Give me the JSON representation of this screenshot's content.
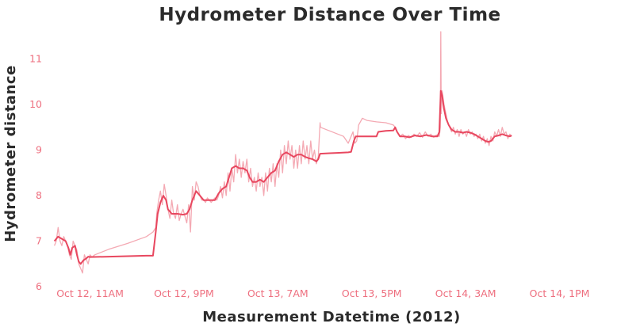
{
  "chart_data": {
    "type": "line",
    "title": "Hydrometer Distance Over Time",
    "xlabel": "Measurement Datetime (2012)",
    "ylabel": "Hydrometer distance",
    "x_tick_labels": [
      "Oct 12, 11AM",
      "Oct 12, 9PM",
      "Oct 13, 7AM",
      "Oct 13, 5PM",
      "Oct 14, 3AM",
      "Oct 14, 1PM"
    ],
    "x_tick_hours": [
      0,
      10,
      20,
      30,
      40,
      50
    ],
    "xlim_hours": [
      -4.1,
      54.6
    ],
    "y_ticks": [
      6,
      7,
      8,
      9,
      10,
      11
    ],
    "ylim": [
      6.0,
      11.6
    ],
    "grid": false,
    "colors": {
      "raw": "#f4a9b3",
      "smoothed": "#e8475f",
      "tick_text": "#ee6f7f"
    },
    "series": [
      {
        "key": "raw",
        "values": [
          [
            -3.8,
            6.9
          ],
          [
            -3.6,
            7.0
          ],
          [
            -3.4,
            7.3
          ],
          [
            -3.2,
            7.0
          ],
          [
            -3.0,
            6.9
          ],
          [
            -2.8,
            7.1
          ],
          [
            -2.6,
            7.0
          ],
          [
            -2.4,
            6.9
          ],
          [
            -2.2,
            6.7
          ],
          [
            -2.0,
            6.6
          ],
          [
            -1.8,
            7.0
          ],
          [
            -1.6,
            6.9
          ],
          [
            -1.4,
            6.8
          ],
          [
            -1.2,
            6.5
          ],
          [
            -1.0,
            6.4
          ],
          [
            -0.8,
            6.3
          ],
          [
            -0.6,
            6.7
          ],
          [
            -0.4,
            6.6
          ],
          [
            -0.2,
            6.5
          ],
          [
            0.0,
            6.7
          ],
          [
            0.2,
            6.65
          ],
          [
            0.5,
            6.7
          ],
          [
            2.0,
            6.82
          ],
          [
            4.0,
            6.95
          ],
          [
            6.0,
            7.1
          ],
          [
            6.7,
            7.2
          ],
          [
            7.0,
            7.3
          ],
          [
            7.1,
            7.6
          ],
          [
            7.3,
            7.9
          ],
          [
            7.5,
            8.1
          ],
          [
            7.7,
            7.8
          ],
          [
            7.9,
            8.25
          ],
          [
            8.1,
            8.0
          ],
          [
            8.3,
            7.7
          ],
          [
            8.5,
            7.5
          ],
          [
            8.7,
            7.9
          ],
          [
            8.9,
            7.6
          ],
          [
            9.1,
            7.5
          ],
          [
            9.3,
            7.8
          ],
          [
            9.5,
            7.45
          ],
          [
            9.7,
            7.6
          ],
          [
            9.9,
            7.7
          ],
          [
            10.1,
            7.55
          ],
          [
            10.3,
            7.4
          ],
          [
            10.5,
            7.8
          ],
          [
            10.7,
            7.2
          ],
          [
            10.9,
            8.2
          ],
          [
            11.1,
            7.9
          ],
          [
            11.3,
            8.3
          ],
          [
            11.5,
            8.2
          ],
          [
            11.7,
            8.0
          ],
          [
            11.9,
            7.9
          ],
          [
            12.1,
            7.9
          ],
          [
            12.3,
            7.85
          ],
          [
            12.5,
            7.95
          ],
          [
            12.7,
            7.9
          ],
          [
            12.9,
            7.85
          ],
          [
            13.1,
            7.9
          ],
          [
            13.3,
            7.95
          ],
          [
            13.5,
            7.9
          ],
          [
            13.7,
            8.0
          ],
          [
            13.9,
            8.2
          ],
          [
            14.1,
            7.95
          ],
          [
            14.3,
            8.3
          ],
          [
            14.5,
            8.0
          ],
          [
            14.7,
            8.5
          ],
          [
            14.9,
            8.1
          ],
          [
            15.1,
            8.6
          ],
          [
            15.3,
            8.3
          ],
          [
            15.5,
            8.9
          ],
          [
            15.7,
            8.5
          ],
          [
            15.9,
            8.8
          ],
          [
            16.1,
            8.4
          ],
          [
            16.3,
            8.75
          ],
          [
            16.5,
            8.5
          ],
          [
            16.7,
            8.8
          ],
          [
            16.9,
            8.3
          ],
          [
            17.1,
            8.6
          ],
          [
            17.3,
            8.2
          ],
          [
            17.5,
            8.4
          ],
          [
            17.7,
            8.1
          ],
          [
            17.9,
            8.5
          ],
          [
            18.1,
            8.2
          ],
          [
            18.3,
            8.4
          ],
          [
            18.5,
            8.0
          ],
          [
            18.7,
            8.5
          ],
          [
            18.9,
            8.1
          ],
          [
            19.1,
            8.6
          ],
          [
            19.3,
            8.3
          ],
          [
            19.5,
            8.7
          ],
          [
            19.7,
            8.2
          ],
          [
            19.9,
            8.7
          ],
          [
            20.1,
            8.4
          ],
          [
            20.3,
            9.0
          ],
          [
            20.5,
            8.5
          ],
          [
            20.7,
            9.1
          ],
          [
            20.9,
            8.7
          ],
          [
            21.1,
            9.2
          ],
          [
            21.3,
            8.8
          ],
          [
            21.5,
            9.1
          ],
          [
            21.7,
            8.6
          ],
          [
            21.9,
            9.0
          ],
          [
            22.1,
            8.6
          ],
          [
            22.3,
            9.1
          ],
          [
            22.5,
            8.7
          ],
          [
            22.7,
            9.2
          ],
          [
            22.9,
            8.8
          ],
          [
            23.1,
            9.1
          ],
          [
            23.3,
            8.7
          ],
          [
            23.5,
            9.2
          ],
          [
            23.7,
            8.8
          ],
          [
            23.9,
            9.0
          ],
          [
            24.1,
            8.7
          ],
          [
            24.3,
            8.85
          ],
          [
            24.5,
            9.6
          ],
          [
            24.55,
            9.5
          ],
          [
            27.0,
            9.3
          ],
          [
            27.5,
            9.15
          ],
          [
            28.0,
            9.4
          ],
          [
            28.2,
            9.15
          ],
          [
            28.4,
            9.2
          ],
          [
            28.6,
            9.55
          ],
          [
            29.0,
            9.7
          ],
          [
            29.5,
            9.65
          ],
          [
            30.5,
            9.62
          ],
          [
            31.5,
            9.6
          ],
          [
            32.3,
            9.55
          ],
          [
            32.5,
            9.5
          ],
          [
            32.7,
            9.4
          ],
          [
            33.0,
            9.3
          ],
          [
            33.3,
            9.35
          ],
          [
            33.6,
            9.25
          ],
          [
            33.9,
            9.32
          ],
          [
            34.2,
            9.28
          ],
          [
            34.5,
            9.35
          ],
          [
            34.8,
            9.3
          ],
          [
            35.1,
            9.38
          ],
          [
            35.4,
            9.28
          ],
          [
            35.7,
            9.4
          ],
          [
            36.0,
            9.3
          ],
          [
            36.3,
            9.35
          ],
          [
            36.6,
            9.28
          ],
          [
            36.9,
            9.33
          ],
          [
            37.2,
            9.3
          ],
          [
            37.3,
            9.5
          ],
          [
            37.35,
            11.6
          ],
          [
            37.4,
            9.8
          ],
          [
            37.5,
            10.3
          ],
          [
            37.7,
            10.0
          ],
          [
            37.9,
            9.8
          ],
          [
            38.1,
            9.6
          ],
          [
            38.3,
            9.5
          ],
          [
            38.5,
            9.4
          ],
          [
            38.7,
            9.5
          ],
          [
            38.9,
            9.35
          ],
          [
            39.1,
            9.45
          ],
          [
            39.3,
            9.3
          ],
          [
            39.5,
            9.45
          ],
          [
            39.7,
            9.35
          ],
          [
            39.9,
            9.4
          ],
          [
            40.1,
            9.3
          ],
          [
            40.3,
            9.45
          ],
          [
            40.5,
            9.35
          ],
          [
            40.7,
            9.4
          ],
          [
            40.9,
            9.3
          ],
          [
            41.1,
            9.35
          ],
          [
            41.3,
            9.25
          ],
          [
            41.5,
            9.35
          ],
          [
            41.7,
            9.2
          ],
          [
            41.9,
            9.3
          ],
          [
            42.1,
            9.15
          ],
          [
            42.3,
            9.25
          ],
          [
            42.5,
            9.1
          ],
          [
            42.7,
            9.3
          ],
          [
            42.9,
            9.2
          ],
          [
            43.1,
            9.4
          ],
          [
            43.3,
            9.3
          ],
          [
            43.5,
            9.45
          ],
          [
            43.7,
            9.3
          ],
          [
            43.9,
            9.5
          ],
          [
            44.1,
            9.35
          ],
          [
            44.3,
            9.4
          ],
          [
            44.5,
            9.25
          ],
          [
            44.7,
            9.35
          ],
          [
            44.9,
            9.3
          ]
        ]
      },
      {
        "key": "smoothed",
        "values": [
          [
            -3.8,
            7.0
          ],
          [
            -3.4,
            7.1
          ],
          [
            -3.0,
            7.05
          ],
          [
            -2.6,
            7.0
          ],
          [
            -2.3,
            6.85
          ],
          [
            -2.1,
            6.7
          ],
          [
            -1.9,
            6.85
          ],
          [
            -1.6,
            6.9
          ],
          [
            -1.4,
            6.7
          ],
          [
            -1.2,
            6.55
          ],
          [
            -1.0,
            6.5
          ],
          [
            -0.7,
            6.58
          ],
          [
            -0.4,
            6.62
          ],
          [
            -0.2,
            6.66
          ],
          [
            0.0,
            6.65
          ],
          [
            2.0,
            6.66
          ],
          [
            4.0,
            6.67
          ],
          [
            6.0,
            6.68
          ],
          [
            6.7,
            6.68
          ],
          [
            7.0,
            7.2
          ],
          [
            7.2,
            7.6
          ],
          [
            7.5,
            7.85
          ],
          [
            7.8,
            8.0
          ],
          [
            8.1,
            7.9
          ],
          [
            8.3,
            7.7
          ],
          [
            8.7,
            7.6
          ],
          [
            9.3,
            7.6
          ],
          [
            9.9,
            7.58
          ],
          [
            10.3,
            7.6
          ],
          [
            10.6,
            7.7
          ],
          [
            10.9,
            7.9
          ],
          [
            11.3,
            8.1
          ],
          [
            11.7,
            8.0
          ],
          [
            12.1,
            7.9
          ],
          [
            12.7,
            7.9
          ],
          [
            13.3,
            7.9
          ],
          [
            13.7,
            8.05
          ],
          [
            14.1,
            8.15
          ],
          [
            14.5,
            8.2
          ],
          [
            14.8,
            8.4
          ],
          [
            15.1,
            8.6
          ],
          [
            15.5,
            8.65
          ],
          [
            15.9,
            8.6
          ],
          [
            16.3,
            8.6
          ],
          [
            16.7,
            8.55
          ],
          [
            17.0,
            8.4
          ],
          [
            17.3,
            8.3
          ],
          [
            17.7,
            8.3
          ],
          [
            18.1,
            8.35
          ],
          [
            18.5,
            8.3
          ],
          [
            18.9,
            8.4
          ],
          [
            19.3,
            8.5
          ],
          [
            19.7,
            8.55
          ],
          [
            20.1,
            8.75
          ],
          [
            20.5,
            8.9
          ],
          [
            20.9,
            8.95
          ],
          [
            21.3,
            8.9
          ],
          [
            21.7,
            8.85
          ],
          [
            22.1,
            8.9
          ],
          [
            22.5,
            8.9
          ],
          [
            22.9,
            8.85
          ],
          [
            23.3,
            8.82
          ],
          [
            23.7,
            8.8
          ],
          [
            24.1,
            8.75
          ],
          [
            24.3,
            8.8
          ],
          [
            24.5,
            8.92
          ],
          [
            25.5,
            8.93
          ],
          [
            26.5,
            8.94
          ],
          [
            27.5,
            8.95
          ],
          [
            27.8,
            8.96
          ],
          [
            28.1,
            9.2
          ],
          [
            28.3,
            9.3
          ],
          [
            29.0,
            9.3
          ],
          [
            30.0,
            9.3
          ],
          [
            30.5,
            9.3
          ],
          [
            30.7,
            9.4
          ],
          [
            31.5,
            9.42
          ],
          [
            32.3,
            9.43
          ],
          [
            32.5,
            9.5
          ],
          [
            32.7,
            9.4
          ],
          [
            33.0,
            9.3
          ],
          [
            33.5,
            9.3
          ],
          [
            34.0,
            9.28
          ],
          [
            34.6,
            9.32
          ],
          [
            35.2,
            9.3
          ],
          [
            35.8,
            9.33
          ],
          [
            36.4,
            9.3
          ],
          [
            37.0,
            9.3
          ],
          [
            37.2,
            9.4
          ],
          [
            37.35,
            10.3
          ],
          [
            37.5,
            10.2
          ],
          [
            37.7,
            9.9
          ],
          [
            37.9,
            9.7
          ],
          [
            38.2,
            9.55
          ],
          [
            38.5,
            9.45
          ],
          [
            38.9,
            9.4
          ],
          [
            39.3,
            9.4
          ],
          [
            39.7,
            9.38
          ],
          [
            40.1,
            9.4
          ],
          [
            40.5,
            9.38
          ],
          [
            40.9,
            9.35
          ],
          [
            41.3,
            9.3
          ],
          [
            41.7,
            9.25
          ],
          [
            42.1,
            9.2
          ],
          [
            42.4,
            9.18
          ],
          [
            42.7,
            9.2
          ],
          [
            43.1,
            9.3
          ],
          [
            43.5,
            9.32
          ],
          [
            43.9,
            9.35
          ],
          [
            44.3,
            9.32
          ],
          [
            44.7,
            9.3
          ],
          [
            44.9,
            9.32
          ]
        ]
      }
    ]
  }
}
